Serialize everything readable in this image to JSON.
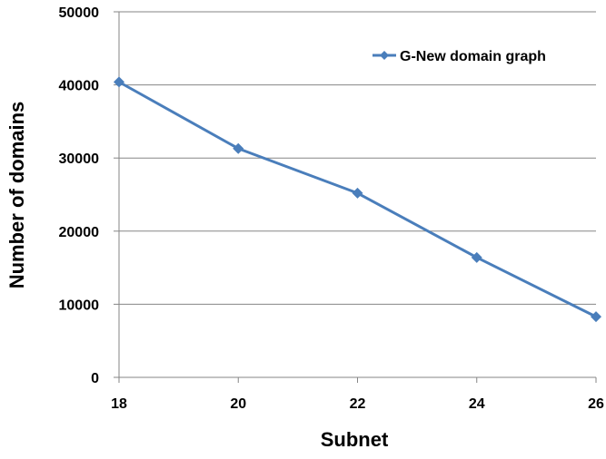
{
  "chart_data": {
    "type": "line",
    "title": "",
    "xlabel": "Subnet",
    "ylabel": "Number of domains",
    "x": [
      18,
      20,
      22,
      24,
      26
    ],
    "xlim": [
      18,
      26
    ],
    "ylim": [
      0,
      50000
    ],
    "xticks": [
      "18",
      "20",
      "22",
      "24",
      "26"
    ],
    "yticks": [
      "0",
      "10000",
      "20000",
      "30000",
      "40000",
      "50000"
    ],
    "grid": "horizontal",
    "legend_position": "top-right",
    "series": [
      {
        "name": "G-New domain graph",
        "color": "#4a7ebb",
        "marker": "diamond",
        "values": [
          40400,
          31300,
          25200,
          16400,
          8300
        ]
      }
    ]
  }
}
